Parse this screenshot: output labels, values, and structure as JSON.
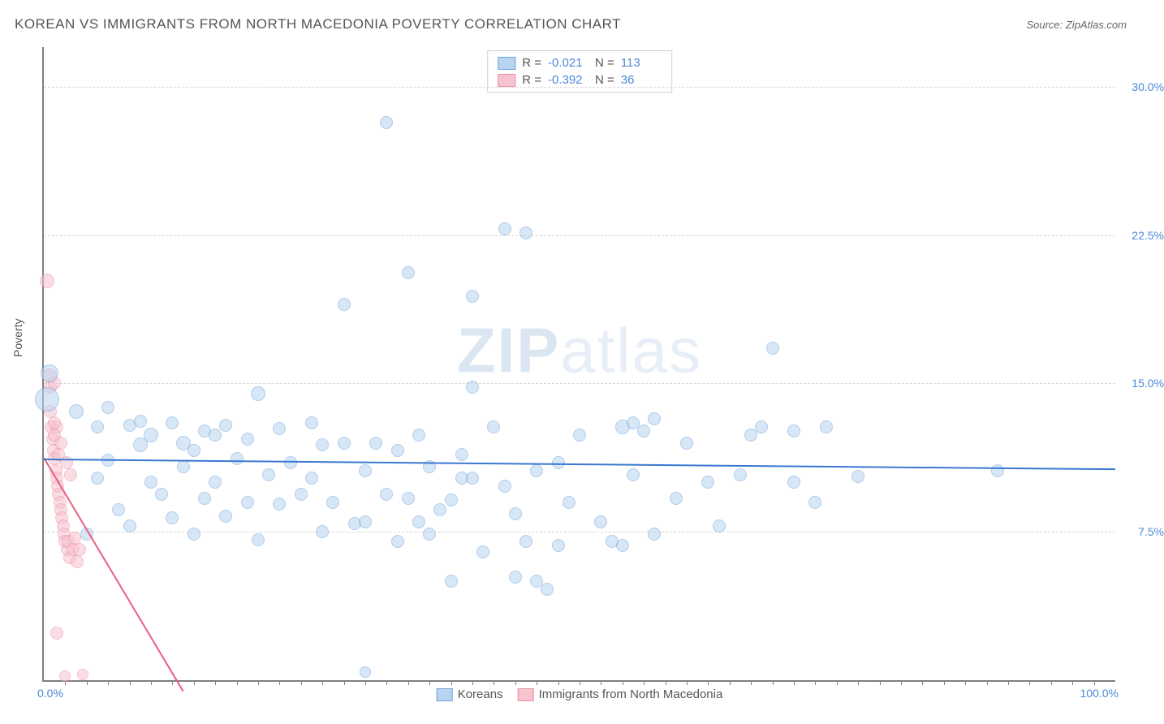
{
  "header": {
    "title": "KOREAN VS IMMIGRANTS FROM NORTH MACEDONIA POVERTY CORRELATION CHART",
    "source_prefix": "Source: ",
    "source": "ZipAtlas.com"
  },
  "watermark": {
    "zip": "ZIP",
    "atlas": "atlas"
  },
  "axes": {
    "ylabel": "Poverty",
    "x_min_label": "0.0%",
    "x_max_label": "100.0%",
    "xlim": [
      0,
      100
    ],
    "ylim": [
      0,
      32
    ],
    "yticks": [
      {
        "v": 7.5,
        "label": "7.5%"
      },
      {
        "v": 15.0,
        "label": "15.0%"
      },
      {
        "v": 22.5,
        "label": "22.5%"
      },
      {
        "v": 30.0,
        "label": "30.0%"
      }
    ],
    "x_minor_step": 2.0,
    "grid_color": "#d8d8d8",
    "axis_color": "#808080"
  },
  "series": {
    "blue": {
      "name": "Koreans",
      "fill": "#b9d4ef",
      "stroke": "#6fa4dd",
      "fill_opacity": 0.55,
      "trend_color": "#3a78d0",
      "R": "-0.021",
      "N": "113",
      "trend": {
        "x1": 0,
        "y1": 11.2,
        "x2": 100,
        "y2": 10.7
      },
      "points": [
        {
          "x": 0.3,
          "y": 14.2,
          "r": 14
        },
        {
          "x": 0.5,
          "y": 15.5,
          "r": 10
        },
        {
          "x": 3,
          "y": 13.6,
          "r": 8
        },
        {
          "x": 4,
          "y": 7.4,
          "r": 7
        },
        {
          "x": 5,
          "y": 10.2,
          "r": 7
        },
        {
          "x": 5,
          "y": 12.8,
          "r": 7
        },
        {
          "x": 6,
          "y": 11.1,
          "r": 7
        },
        {
          "x": 6,
          "y": 13.8,
          "r": 7
        },
        {
          "x": 7,
          "y": 8.6,
          "r": 7
        },
        {
          "x": 8,
          "y": 12.9,
          "r": 7
        },
        {
          "x": 8,
          "y": 7.8,
          "r": 7
        },
        {
          "x": 9,
          "y": 11.9,
          "r": 8
        },
        {
          "x": 9,
          "y": 13.1,
          "r": 7
        },
        {
          "x": 10,
          "y": 10.0,
          "r": 7
        },
        {
          "x": 10,
          "y": 12.4,
          "r": 8
        },
        {
          "x": 11,
          "y": 9.4,
          "r": 7
        },
        {
          "x": 12,
          "y": 13.0,
          "r": 7
        },
        {
          "x": 12,
          "y": 8.2,
          "r": 7
        },
        {
          "x": 13,
          "y": 12.0,
          "r": 8
        },
        {
          "x": 13,
          "y": 10.8,
          "r": 7
        },
        {
          "x": 14,
          "y": 7.4,
          "r": 7
        },
        {
          "x": 14,
          "y": 11.6,
          "r": 7
        },
        {
          "x": 15,
          "y": 12.6,
          "r": 7
        },
        {
          "x": 15,
          "y": 9.2,
          "r": 7
        },
        {
          "x": 16,
          "y": 10.0,
          "r": 7
        },
        {
          "x": 16,
          "y": 12.4,
          "r": 7
        },
        {
          "x": 17,
          "y": 8.3,
          "r": 7
        },
        {
          "x": 17,
          "y": 12.9,
          "r": 7
        },
        {
          "x": 18,
          "y": 11.2,
          "r": 7
        },
        {
          "x": 19,
          "y": 9.0,
          "r": 7
        },
        {
          "x": 19,
          "y": 12.2,
          "r": 7
        },
        {
          "x": 20,
          "y": 7.1,
          "r": 7
        },
        {
          "x": 20,
          "y": 14.5,
          "r": 8
        },
        {
          "x": 21,
          "y": 10.4,
          "r": 7
        },
        {
          "x": 22,
          "y": 8.9,
          "r": 7
        },
        {
          "x": 22,
          "y": 12.7,
          "r": 7
        },
        {
          "x": 23,
          "y": 11.0,
          "r": 7
        },
        {
          "x": 24,
          "y": 9.4,
          "r": 7
        },
        {
          "x": 25,
          "y": 13.0,
          "r": 7
        },
        {
          "x": 25,
          "y": 10.2,
          "r": 7
        },
        {
          "x": 26,
          "y": 7.5,
          "r": 7
        },
        {
          "x": 26,
          "y": 11.9,
          "r": 7
        },
        {
          "x": 27,
          "y": 9.0,
          "r": 7
        },
        {
          "x": 28,
          "y": 12.0,
          "r": 7
        },
        {
          "x": 28,
          "y": 19.0,
          "r": 7
        },
        {
          "x": 29,
          "y": 7.9,
          "r": 7
        },
        {
          "x": 30,
          "y": 8.0,
          "r": 7
        },
        {
          "x": 30,
          "y": 10.6,
          "r": 7
        },
        {
          "x": 30,
          "y": 0.4,
          "r": 6
        },
        {
          "x": 31,
          "y": 12.0,
          "r": 7
        },
        {
          "x": 32,
          "y": 28.2,
          "r": 7
        },
        {
          "x": 32,
          "y": 9.4,
          "r": 7
        },
        {
          "x": 33,
          "y": 7.0,
          "r": 7
        },
        {
          "x": 33,
          "y": 11.6,
          "r": 7
        },
        {
          "x": 34,
          "y": 20.6,
          "r": 7
        },
        {
          "x": 34,
          "y": 9.2,
          "r": 7
        },
        {
          "x": 35,
          "y": 8.0,
          "r": 7
        },
        {
          "x": 35,
          "y": 12.4,
          "r": 7
        },
        {
          "x": 36,
          "y": 7.4,
          "r": 7
        },
        {
          "x": 36,
          "y": 10.8,
          "r": 7
        },
        {
          "x": 37,
          "y": 8.6,
          "r": 7
        },
        {
          "x": 38,
          "y": 9.1,
          "r": 7
        },
        {
          "x": 38,
          "y": 5.0,
          "r": 7
        },
        {
          "x": 39,
          "y": 11.4,
          "r": 7
        },
        {
          "x": 39,
          "y": 10.2,
          "r": 7
        },
        {
          "x": 40,
          "y": 19.4,
          "r": 7
        },
        {
          "x": 40,
          "y": 10.2,
          "r": 7
        },
        {
          "x": 40,
          "y": 14.8,
          "r": 7
        },
        {
          "x": 41,
          "y": 6.5,
          "r": 7
        },
        {
          "x": 42,
          "y": 12.8,
          "r": 7
        },
        {
          "x": 43,
          "y": 22.8,
          "r": 7
        },
        {
          "x": 43,
          "y": 9.8,
          "r": 7
        },
        {
          "x": 44,
          "y": 8.4,
          "r": 7
        },
        {
          "x": 44,
          "y": 5.2,
          "r": 7
        },
        {
          "x": 45,
          "y": 7.0,
          "r": 7
        },
        {
          "x": 45,
          "y": 22.6,
          "r": 7
        },
        {
          "x": 46,
          "y": 10.6,
          "r": 7
        },
        {
          "x": 46,
          "y": 5.0,
          "r": 7
        },
        {
          "x": 47,
          "y": 4.6,
          "r": 7
        },
        {
          "x": 48,
          "y": 6.8,
          "r": 7
        },
        {
          "x": 48,
          "y": 11.0,
          "r": 7
        },
        {
          "x": 49,
          "y": 9.0,
          "r": 7
        },
        {
          "x": 50,
          "y": 12.4,
          "r": 7
        },
        {
          "x": 52,
          "y": 8.0,
          "r": 7
        },
        {
          "x": 53,
          "y": 7.0,
          "r": 7
        },
        {
          "x": 54,
          "y": 12.8,
          "r": 8
        },
        {
          "x": 54,
          "y": 6.8,
          "r": 7
        },
        {
          "x": 55,
          "y": 13.0,
          "r": 7
        },
        {
          "x": 55,
          "y": 10.4,
          "r": 7
        },
        {
          "x": 56,
          "y": 12.6,
          "r": 7
        },
        {
          "x": 57,
          "y": 7.4,
          "r": 7
        },
        {
          "x": 57,
          "y": 13.2,
          "r": 7
        },
        {
          "x": 59,
          "y": 9.2,
          "r": 7
        },
        {
          "x": 60,
          "y": 12.0,
          "r": 7
        },
        {
          "x": 62,
          "y": 10.0,
          "r": 7
        },
        {
          "x": 63,
          "y": 7.8,
          "r": 7
        },
        {
          "x": 65,
          "y": 10.4,
          "r": 7
        },
        {
          "x": 66,
          "y": 12.4,
          "r": 7
        },
        {
          "x": 67,
          "y": 12.8,
          "r": 7
        },
        {
          "x": 68,
          "y": 16.8,
          "r": 7
        },
        {
          "x": 70,
          "y": 10.0,
          "r": 7
        },
        {
          "x": 70,
          "y": 12.6,
          "r": 7
        },
        {
          "x": 72,
          "y": 9.0,
          "r": 7
        },
        {
          "x": 73,
          "y": 12.8,
          "r": 7
        },
        {
          "x": 76,
          "y": 10.3,
          "r": 7
        },
        {
          "x": 89,
          "y": 10.6,
          "r": 7
        }
      ]
    },
    "pink": {
      "name": "Immigrants from North Macedonia",
      "fill": "#f6c3ce",
      "stroke": "#ec90a4",
      "fill_opacity": 0.55,
      "trend_color": "#e7607e",
      "R": "-0.392",
      "N": "36",
      "trend": {
        "x1": 0,
        "y1": 11.3,
        "x2": 13,
        "y2": -0.5
      },
      "points": [
        {
          "x": 0.3,
          "y": 20.2,
          "r": 8
        },
        {
          "x": 0.5,
          "y": 15.4,
          "r": 8
        },
        {
          "x": 0.6,
          "y": 14.8,
          "r": 7
        },
        {
          "x": 0.6,
          "y": 13.6,
          "r": 7
        },
        {
          "x": 0.7,
          "y": 12.8,
          "r": 7
        },
        {
          "x": 0.8,
          "y": 12.2,
          "r": 7
        },
        {
          "x": 0.9,
          "y": 11.6,
          "r": 7
        },
        {
          "x": 1.0,
          "y": 11.2,
          "r": 7
        },
        {
          "x": 1.1,
          "y": 10.6,
          "r": 7
        },
        {
          "x": 1.2,
          "y": 10.2,
          "r": 7
        },
        {
          "x": 1.2,
          "y": 12.8,
          "r": 7
        },
        {
          "x": 1.3,
          "y": 9.8,
          "r": 7
        },
        {
          "x": 1.4,
          "y": 9.4,
          "r": 7
        },
        {
          "x": 1.5,
          "y": 9.0,
          "r": 7
        },
        {
          "x": 1.6,
          "y": 8.6,
          "r": 7
        },
        {
          "x": 1.6,
          "y": 12.0,
          "r": 7
        },
        {
          "x": 1.7,
          "y": 8.2,
          "r": 7
        },
        {
          "x": 1.8,
          "y": 7.8,
          "r": 7
        },
        {
          "x": 1.9,
          "y": 7.4,
          "r": 7
        },
        {
          "x": 2.0,
          "y": 7.0,
          "r": 7
        },
        {
          "x": 2.1,
          "y": 11.0,
          "r": 7
        },
        {
          "x": 2.2,
          "y": 6.6,
          "r": 7
        },
        {
          "x": 2.3,
          "y": 7.0,
          "r": 7
        },
        {
          "x": 2.4,
          "y": 6.2,
          "r": 7
        },
        {
          "x": 2.5,
          "y": 10.4,
          "r": 7
        },
        {
          "x": 2.7,
          "y": 6.6,
          "r": 7
        },
        {
          "x": 2.9,
          "y": 7.2,
          "r": 7
        },
        {
          "x": 3.1,
          "y": 6.0,
          "r": 7
        },
        {
          "x": 3.3,
          "y": 6.6,
          "r": 7
        },
        {
          "x": 1.2,
          "y": 2.4,
          "r": 7
        },
        {
          "x": 2.0,
          "y": 0.2,
          "r": 6
        },
        {
          "x": 3.6,
          "y": 0.3,
          "r": 6
        },
        {
          "x": 1.0,
          "y": 15.0,
          "r": 7
        },
        {
          "x": 1.0,
          "y": 13.0,
          "r": 7
        },
        {
          "x": 1.0,
          "y": 12.4,
          "r": 7
        },
        {
          "x": 1.4,
          "y": 11.4,
          "r": 7
        }
      ]
    }
  },
  "legend_top": {
    "R_label": "R =",
    "N_label": "N ="
  }
}
